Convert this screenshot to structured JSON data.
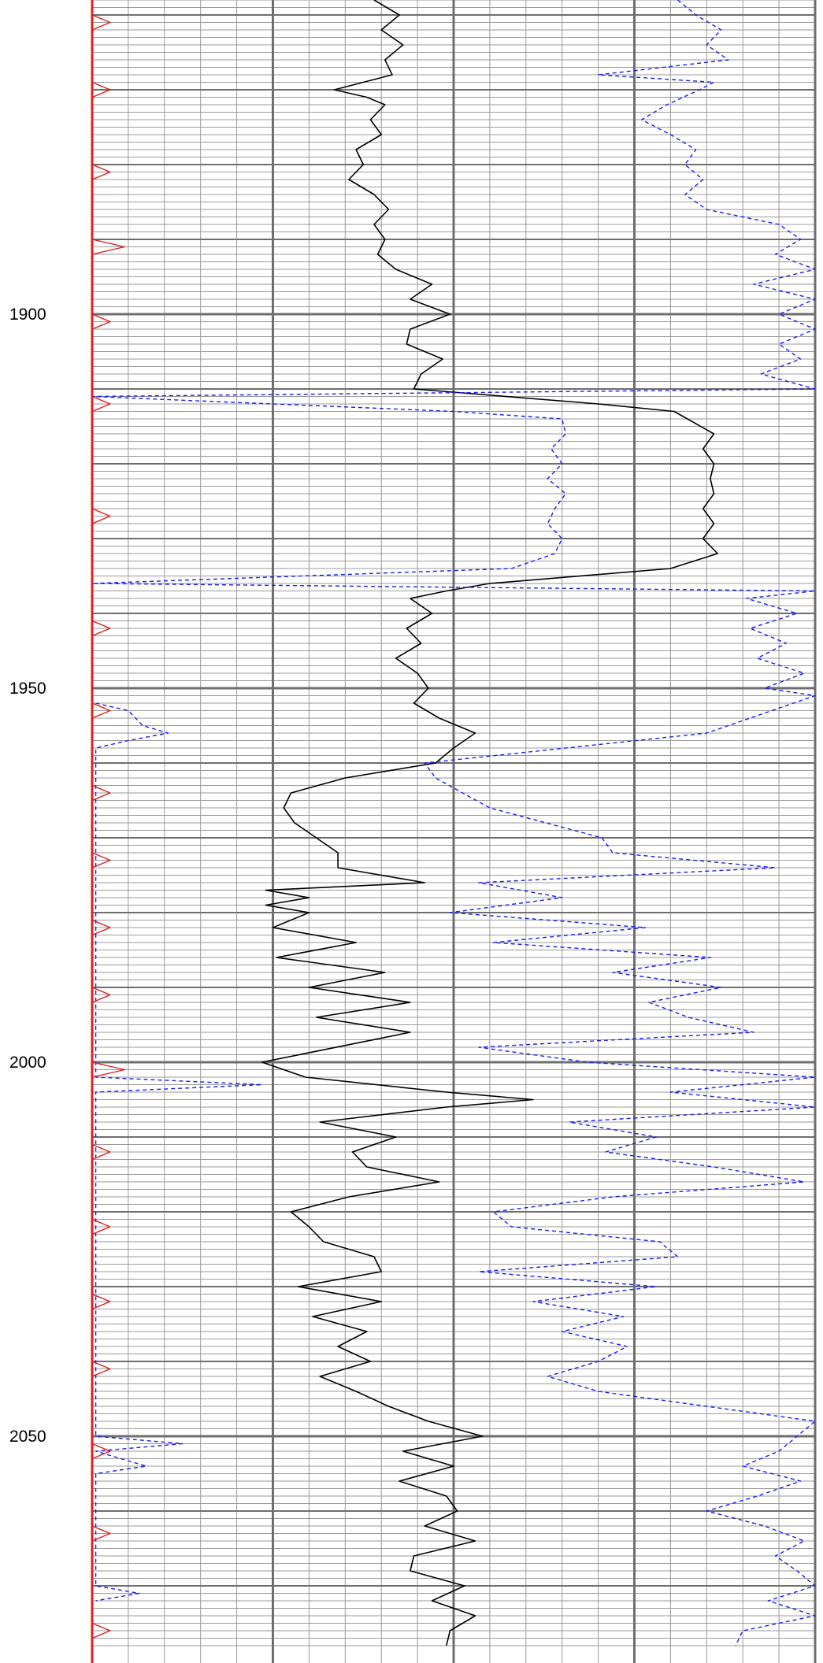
{
  "chart_data": {
    "type": "line",
    "title": "",
    "xlabel": "",
    "ylabel": "",
    "y_axis": "depth",
    "y_direction": "down",
    "ylim": [
      1858,
      2078
    ],
    "depth_tick_labels": [
      "1900",
      "1950",
      "2000",
      "2050"
    ],
    "grid": true,
    "track_range": [
      0,
      100
    ],
    "colors": {
      "black_curve": "#000000",
      "blue_curve": "#1a1aff",
      "red_curve": "#e02020",
      "grid_minor": "#9a9a9a",
      "grid_major": "#6e6e6e"
    },
    "series": [
      {
        "style": "solid",
        "color": "#000000",
        "points": [
          [
            1858,
            39.0
          ],
          [
            1860,
            42.5
          ],
          [
            1862,
            40.0
          ],
          [
            1864,
            43.0
          ],
          [
            1866,
            40.5
          ],
          [
            1868,
            41.5
          ],
          [
            1870,
            33.5
          ],
          [
            1871,
            38.0
          ],
          [
            1872,
            40.5
          ],
          [
            1874,
            38.5
          ],
          [
            1876,
            40.0
          ],
          [
            1878,
            36.5
          ],
          [
            1880,
            37.5
          ],
          [
            1882,
            35.5
          ],
          [
            1884,
            39.0
          ],
          [
            1886,
            41.0
          ],
          [
            1888,
            39.0
          ],
          [
            1890,
            40.5
          ],
          [
            1892,
            39.5
          ],
          [
            1894,
            42.0
          ],
          [
            1896,
            47.0
          ],
          [
            1898,
            44.0
          ],
          [
            1900,
            49.5
          ],
          [
            1902,
            44.0
          ],
          [
            1904,
            43.5
          ],
          [
            1906,
            48.5
          ],
          [
            1908,
            45.5
          ],
          [
            1910,
            44.5
          ],
          [
            1912,
            70.0
          ],
          [
            1913,
            80.5
          ],
          [
            1916,
            86.0
          ],
          [
            1918,
            84.5
          ],
          [
            1920,
            86.0
          ],
          [
            1922,
            85.5
          ],
          [
            1924,
            86.0
          ],
          [
            1926,
            84.5
          ],
          [
            1928,
            86.0
          ],
          [
            1930,
            84.5
          ],
          [
            1932,
            86.5
          ],
          [
            1934,
            80.0
          ],
          [
            1936,
            55.0
          ],
          [
            1937,
            49.0
          ],
          [
            1938,
            44.0
          ],
          [
            1940,
            47.0
          ],
          [
            1942,
            43.5
          ],
          [
            1944,
            45.5
          ],
          [
            1946,
            42.0
          ],
          [
            1948,
            45.0
          ],
          [
            1950,
            46.5
          ],
          [
            1952,
            44.5
          ],
          [
            1954,
            48.0
          ],
          [
            1956,
            53.0
          ],
          [
            1958,
            50.0
          ],
          [
            1960,
            47.5
          ],
          [
            1962,
            35.0
          ],
          [
            1964,
            27.5
          ],
          [
            1966,
            26.5
          ],
          [
            1968,
            28.0
          ],
          [
            1970,
            31.0
          ],
          [
            1972,
            34.0
          ],
          [
            1974,
            34.0
          ],
          [
            1976,
            46.0
          ],
          [
            1977,
            24.0
          ],
          [
            1978,
            30.0
          ],
          [
            1979,
            24.0
          ],
          [
            1980,
            30.0
          ],
          [
            1982,
            25.0
          ],
          [
            1984,
            36.5
          ],
          [
            1986,
            25.5
          ],
          [
            1988,
            40.5
          ],
          [
            1990,
            30.0
          ],
          [
            1992,
            44.0
          ],
          [
            1994,
            31.0
          ],
          [
            1996,
            44.0
          ],
          [
            2000,
            23.5
          ],
          [
            2002,
            29.5
          ],
          [
            2004,
            49.0
          ],
          [
            2005,
            61.0
          ],
          [
            2006,
            49.0
          ],
          [
            2008,
            31.5
          ],
          [
            2010,
            42.0
          ],
          [
            2012,
            36.0
          ],
          [
            2014,
            38.0
          ],
          [
            2016,
            48.0
          ],
          [
            2018,
            35.5
          ],
          [
            2020,
            27.5
          ],
          [
            2022,
            30.0
          ],
          [
            2024,
            32.0
          ],
          [
            2026,
            39.0
          ],
          [
            2028,
            40.0
          ],
          [
            2030,
            28.5
          ],
          [
            2032,
            40.0
          ],
          [
            2034,
            30.5
          ],
          [
            2036,
            38.0
          ],
          [
            2038,
            34.0
          ],
          [
            2040,
            38.5
          ],
          [
            2042,
            31.5
          ],
          [
            2044,
            36.5
          ],
          [
            2046,
            41.0
          ],
          [
            2048,
            46.5
          ],
          [
            2050,
            54.0
          ],
          [
            2052,
            43.0
          ],
          [
            2054,
            50.0
          ],
          [
            2056,
            42.5
          ],
          [
            2058,
            49.0
          ],
          [
            2060,
            50.5
          ],
          [
            2062,
            46.0
          ],
          [
            2064,
            53.0
          ],
          [
            2066,
            44.5
          ],
          [
            2068,
            44.0
          ],
          [
            2070,
            51.5
          ],
          [
            2072,
            47.0
          ],
          [
            2074,
            53.0
          ],
          [
            2076,
            49.5
          ],
          [
            2078,
            49.0
          ]
        ]
      },
      {
        "style": "dashed",
        "color": "#1a1aff",
        "points": [
          [
            1858,
            81.0
          ],
          [
            1860,
            83.5
          ],
          [
            1862,
            87.0
          ],
          [
            1864,
            85.0
          ],
          [
            1866,
            88.0
          ],
          [
            1868,
            70.0
          ],
          [
            1869,
            86.0
          ],
          [
            1870,
            84.0
          ],
          [
            1872,
            79.5
          ],
          [
            1874,
            76.0
          ],
          [
            1876,
            80.0
          ],
          [
            1878,
            83.5
          ],
          [
            1880,
            82.0
          ],
          [
            1882,
            84.5
          ],
          [
            1884,
            82.0
          ],
          [
            1886,
            85.0
          ],
          [
            1888,
            95.0
          ],
          [
            1890,
            98.0
          ],
          [
            1892,
            94.5
          ],
          [
            1894,
            100.0
          ],
          [
            1896,
            91.5
          ],
          [
            1898,
            100.0
          ],
          [
            1900,
            95.0
          ],
          [
            1902,
            100.0
          ],
          [
            1904,
            95.0
          ],
          [
            1906,
            98.0
          ],
          [
            1908,
            92.5
          ],
          [
            1910,
            100.0
          ],
          [
            1911,
            0.0
          ],
          [
            1913,
            50.0
          ],
          [
            1914,
            65.0
          ],
          [
            1916,
            65.5
          ],
          [
            1918,
            63.5
          ],
          [
            1920,
            65.0
          ],
          [
            1922,
            63.0
          ],
          [
            1924,
            65.5
          ],
          [
            1926,
            64.0
          ],
          [
            1928,
            63.0
          ],
          [
            1930,
            65.0
          ],
          [
            1932,
            64.0
          ],
          [
            1934,
            58.0
          ],
          [
            1936,
            0.0
          ],
          [
            1937,
            100.0
          ],
          [
            1938,
            90.5
          ],
          [
            1940,
            97.5
          ],
          [
            1942,
            91.0
          ],
          [
            1944,
            96.0
          ],
          [
            1946,
            92.0
          ],
          [
            1948,
            98.5
          ],
          [
            1950,
            93.0
          ],
          [
            1951,
            100.0
          ],
          [
            1956,
            85.0
          ],
          [
            1960,
            46.0
          ],
          [
            1962,
            47.5
          ],
          [
            1966,
            55.0
          ],
          [
            1970,
            70.5
          ],
          [
            1972,
            72.0
          ],
          [
            1974,
            94.5
          ],
          [
            1976,
            53.5
          ],
          [
            1978,
            65.0
          ],
          [
            1980,
            49.5
          ],
          [
            1982,
            76.5
          ],
          [
            1984,
            55.5
          ],
          [
            1986,
            85.5
          ],
          [
            1988,
            72.0
          ],
          [
            1990,
            87.0
          ],
          [
            1992,
            77.0
          ],
          [
            1994,
            82.5
          ],
          [
            1996,
            91.5
          ],
          [
            1998,
            53.5
          ],
          [
            2000,
            68.5
          ],
          [
            2002,
            100.0
          ],
          [
            2004,
            80.0
          ],
          [
            2006,
            100.0
          ],
          [
            2008,
            66.0
          ],
          [
            2010,
            78.0
          ],
          [
            2012,
            71.0
          ],
          [
            2014,
            86.0
          ],
          [
            2016,
            98.5
          ],
          [
            2018,
            72.0
          ],
          [
            2020,
            55.5
          ],
          [
            2022,
            58.0
          ],
          [
            2024,
            78.5
          ],
          [
            2026,
            81.0
          ],
          [
            2028,
            53.5
          ],
          [
            2030,
            78.0
          ],
          [
            2032,
            61.0
          ],
          [
            2034,
            73.5
          ],
          [
            2036,
            65.0
          ],
          [
            2038,
            74.0
          ],
          [
            2040,
            70.0
          ],
          [
            2042,
            63.0
          ],
          [
            2044,
            70.0
          ],
          [
            2048,
            100.0
          ],
          [
            2052,
            95.0
          ],
          [
            2054,
            90.0
          ],
          [
            2056,
            98.0
          ],
          [
            2058,
            92.0
          ],
          [
            2060,
            85.0
          ],
          [
            2062,
            93.0
          ],
          [
            2064,
            98.5
          ],
          [
            2066,
            94.5
          ],
          [
            2068,
            97.5
          ],
          [
            2070,
            100.0
          ],
          [
            2072,
            93.5
          ],
          [
            2074,
            100.0
          ],
          [
            2076,
            90.0
          ],
          [
            2078,
            89.0
          ]
        ]
      },
      {
        "style": "dashed",
        "color": "#1a1aff",
        "points": [
          [
            1952,
            0.5
          ],
          [
            1953,
            5.0
          ],
          [
            1955,
            7.0
          ],
          [
            1956,
            10.5
          ],
          [
            1957,
            5.0
          ],
          [
            1958,
            0.5
          ],
          [
            2002,
            0.5
          ],
          [
            2003,
            23.5
          ],
          [
            2004,
            0.5
          ],
          [
            2050,
            0.5
          ],
          [
            2051,
            12.5
          ],
          [
            2052,
            0.5
          ],
          [
            2054,
            7.5
          ],
          [
            2055,
            0.5
          ],
          [
            2070,
            0.5
          ],
          [
            2071,
            6.5
          ],
          [
            2072,
            0.5
          ]
        ]
      },
      {
        "style": "solid",
        "color": "#e02020",
        "points": [
          [
            1858,
            0.0
          ],
          [
            1860,
            0.0
          ],
          [
            1861,
            2.5
          ],
          [
            1862,
            0.0
          ],
          [
            1869,
            0.0
          ],
          [
            1870,
            2.5
          ],
          [
            1871,
            0.0
          ],
          [
            1880,
            0.0
          ],
          [
            1881,
            2.5
          ],
          [
            1882,
            0.0
          ],
          [
            1890,
            0.0
          ],
          [
            1891,
            4.5
          ],
          [
            1892,
            0.0
          ],
          [
            1900,
            0.0
          ],
          [
            1901,
            2.5
          ],
          [
            1902,
            0.0
          ],
          [
            1911,
            0.0
          ],
          [
            1912,
            2.5
          ],
          [
            1913,
            0.0
          ],
          [
            1926,
            0.0
          ],
          [
            1927,
            2.5
          ],
          [
            1928,
            0.0
          ],
          [
            1941,
            0.0
          ],
          [
            1942,
            2.5
          ],
          [
            1943,
            0.0
          ],
          [
            1952,
            0.0
          ],
          [
            1953,
            2.5
          ],
          [
            1954,
            0.0
          ],
          [
            1963,
            0.0
          ],
          [
            1964,
            2.5
          ],
          [
            1965,
            0.0
          ],
          [
            1972,
            0.0
          ],
          [
            1973,
            2.5
          ],
          [
            1974,
            0.0
          ],
          [
            1981,
            0.0
          ],
          [
            1982,
            2.5
          ],
          [
            1983,
            0.0
          ],
          [
            1990,
            0.0
          ],
          [
            1991,
            2.5
          ],
          [
            1992,
            0.0
          ],
          [
            2000,
            0.0
          ],
          [
            2001,
            4.5
          ],
          [
            2002,
            0.0
          ],
          [
            2011,
            0.0
          ],
          [
            2012,
            2.5
          ],
          [
            2013,
            0.0
          ],
          [
            2021,
            0.0
          ],
          [
            2022,
            2.5
          ],
          [
            2023,
            0.0
          ],
          [
            2031,
            0.0
          ],
          [
            2032,
            2.5
          ],
          [
            2033,
            0.0
          ],
          [
            2040,
            0.0
          ],
          [
            2041,
            2.5
          ],
          [
            2042,
            0.0
          ],
          [
            2051,
            0.0
          ],
          [
            2052,
            2.5
          ],
          [
            2053,
            0.0
          ],
          [
            2062,
            0.0
          ],
          [
            2063,
            2.5
          ],
          [
            2064,
            0.0
          ],
          [
            2075,
            0.0
          ],
          [
            2076,
            2.5
          ],
          [
            2077,
            0.0
          ]
        ]
      }
    ]
  }
}
